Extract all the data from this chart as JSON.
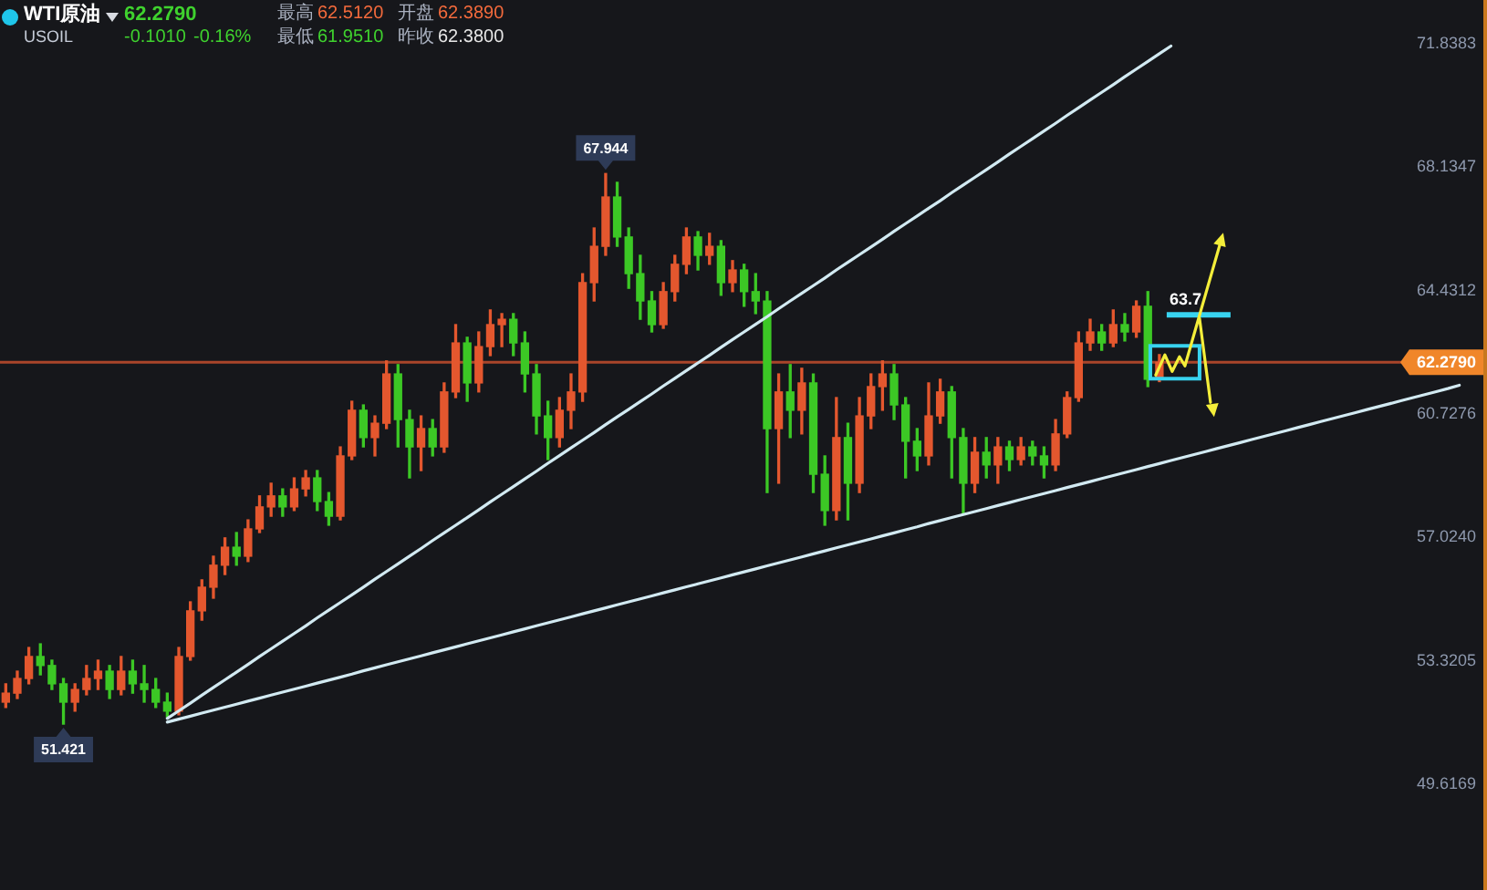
{
  "chart_data": {
    "type": "candlestick",
    "title": "WTI原油",
    "subtitle": "USOIL",
    "annotations": [
      "62.2790",
      "-0.1010",
      "-0.16%",
      "最高",
      "62.5120",
      "开盘",
      "62.3890",
      "最低",
      "61.9510",
      "昨收",
      "62.3800",
      {
        "text": "67.944",
        "y": 67.944
      },
      {
        "text": "51.421",
        "y": 51.421
      },
      "63.7"
    ],
    "categories": [
      null,
      null,
      null,
      null,
      null,
      null,
      null,
      null,
      null,
      null,
      null,
      null,
      null,
      null,
      null,
      null,
      null,
      null,
      null,
      null,
      null,
      null,
      null,
      null,
      null,
      null,
      null,
      null,
      null,
      null,
      null,
      null,
      null,
      null,
      null,
      null,
      null,
      null,
      null,
      null,
      null,
      null,
      null,
      null,
      null,
      null,
      null,
      null,
      null,
      null,
      null,
      null,
      null,
      null,
      null,
      null,
      null,
      null,
      null,
      null,
      null,
      null,
      null,
      null,
      null,
      null,
      null,
      null,
      null,
      null,
      null,
      null,
      null,
      null,
      null,
      null,
      null,
      null,
      null,
      null,
      null,
      null,
      null,
      null,
      null,
      null,
      null,
      null,
      null,
      null,
      null,
      null,
      null,
      null,
      null,
      null,
      null,
      null,
      null,
      null,
      null,
      null,
      null,
      null,
      null,
      null,
      null,
      null,
      null,
      null,
      null,
      null,
      null,
      null,
      null,
      null,
      null,
      null,
      null,
      null,
      null,
      null,
      null,
      null,
      null,
      null,
      null
    ],
    "series": [
      {
        "type": "candlestick",
        "ohlc": [
          [
            52.08,
            52.63,
            51.92,
            52.35
          ],
          [
            52.35,
            53.01,
            52.19,
            52.79
          ],
          [
            52.79,
            53.72,
            52.63,
            53.45
          ],
          [
            53.45,
            53.83,
            52.9,
            53.18
          ],
          [
            53.18,
            53.34,
            52.46,
            52.63
          ],
          [
            52.63,
            52.79,
            51.421,
            52.08
          ],
          [
            52.08,
            52.63,
            51.81,
            52.46
          ],
          [
            52.46,
            53.18,
            52.3,
            52.79
          ],
          [
            52.79,
            53.34,
            52.46,
            53.01
          ],
          [
            53.01,
            53.18,
            52.19,
            52.46
          ],
          [
            52.46,
            53.45,
            52.3,
            53.01
          ],
          [
            53.01,
            53.34,
            52.35,
            52.63
          ],
          [
            52.63,
            53.18,
            52.08,
            52.46
          ],
          [
            52.46,
            52.79,
            51.92,
            52.08
          ],
          [
            52.08,
            52.35,
            51.64,
            51.81
          ],
          [
            51.81,
            53.72,
            51.7,
            53.45
          ],
          [
            53.45,
            55.09,
            53.34,
            54.82
          ],
          [
            54.82,
            55.75,
            54.54,
            55.53
          ],
          [
            55.53,
            56.46,
            55.2,
            56.19
          ],
          [
            56.19,
            57.01,
            55.91,
            56.73
          ],
          [
            56.73,
            57.17,
            56.19,
            56.46
          ],
          [
            56.46,
            57.55,
            56.3,
            57.28
          ],
          [
            57.28,
            58.27,
            57.17,
            57.94
          ],
          [
            57.94,
            58.65,
            57.66,
            58.27
          ],
          [
            58.27,
            58.48,
            57.66,
            57.94
          ],
          [
            57.94,
            58.81,
            57.83,
            58.48
          ],
          [
            58.48,
            59.03,
            58.27,
            58.81
          ],
          [
            58.81,
            59.03,
            57.83,
            58.1
          ],
          [
            58.1,
            58.37,
            57.39,
            57.66
          ],
          [
            57.66,
            59.74,
            57.55,
            59.47
          ],
          [
            59.47,
            61.11,
            59.36,
            60.84
          ],
          [
            60.84,
            61.0,
            59.74,
            60.02
          ],
          [
            60.02,
            60.67,
            59.47,
            60.45
          ],
          [
            60.45,
            62.32,
            60.29,
            61.93
          ],
          [
            61.93,
            62.21,
            59.74,
            60.56
          ],
          [
            60.56,
            60.84,
            58.81,
            59.74
          ],
          [
            59.74,
            60.67,
            59.03,
            60.29
          ],
          [
            60.29,
            60.56,
            59.47,
            59.74
          ],
          [
            59.74,
            61.66,
            59.58,
            61.39
          ],
          [
            61.39,
            63.41,
            61.22,
            62.86
          ],
          [
            62.86,
            63.03,
            61.11,
            61.66
          ],
          [
            61.66,
            63.19,
            61.39,
            62.75
          ],
          [
            62.75,
            63.85,
            62.48,
            63.41
          ],
          [
            63.41,
            63.74,
            62.75,
            63.57
          ],
          [
            63.57,
            63.74,
            62.48,
            62.86
          ],
          [
            62.86,
            63.19,
            61.39,
            61.93
          ],
          [
            61.93,
            62.21,
            60.13,
            60.67
          ],
          [
            60.67,
            61.11,
            59.36,
            60.02
          ],
          [
            60.02,
            61.22,
            59.74,
            60.84
          ],
          [
            60.84,
            61.93,
            60.29,
            61.39
          ],
          [
            61.39,
            64.94,
            61.11,
            64.67
          ],
          [
            64.67,
            66.31,
            64.12,
            65.76
          ],
          [
            65.76,
            67.944,
            65.49,
            67.24
          ],
          [
            67.24,
            67.68,
            65.76,
            66.04
          ],
          [
            66.04,
            66.31,
            64.5,
            64.94
          ],
          [
            64.94,
            65.49,
            63.57,
            64.12
          ],
          [
            64.12,
            64.4,
            63.19,
            63.41
          ],
          [
            63.41,
            64.67,
            63.3,
            64.4
          ],
          [
            64.4,
            65.49,
            64.12,
            65.22
          ],
          [
            65.22,
            66.31,
            64.94,
            66.04
          ],
          [
            66.04,
            66.2,
            65.05,
            65.49
          ],
          [
            65.49,
            66.15,
            65.22,
            65.76
          ],
          [
            65.76,
            65.93,
            64.29,
            64.67
          ],
          [
            64.67,
            65.33,
            64.4,
            65.05
          ],
          [
            65.05,
            65.22,
            63.96,
            64.4
          ],
          [
            64.4,
            64.94,
            63.74,
            64.12
          ],
          [
            64.12,
            64.4,
            58.37,
            60.29
          ],
          [
            60.29,
            61.93,
            58.65,
            61.39
          ],
          [
            61.39,
            62.21,
            60.02,
            60.84
          ],
          [
            60.84,
            62.1,
            60.13,
            61.66
          ],
          [
            61.66,
            61.93,
            58.37,
            58.92
          ],
          [
            58.92,
            59.47,
            57.39,
            57.83
          ],
          [
            57.83,
            61.22,
            57.55,
            60.02
          ],
          [
            60.02,
            60.45,
            57.55,
            58.65
          ],
          [
            58.65,
            61.22,
            58.37,
            60.67
          ],
          [
            60.67,
            61.93,
            60.29,
            61.55
          ],
          [
            61.55,
            62.32,
            60.84,
            61.93
          ],
          [
            61.93,
            62.21,
            60.56,
            61.0
          ],
          [
            61.0,
            61.22,
            58.81,
            59.91
          ],
          [
            59.91,
            60.29,
            59.03,
            59.47
          ],
          [
            59.47,
            61.66,
            59.2,
            60.67
          ],
          [
            60.67,
            61.77,
            60.45,
            61.39
          ],
          [
            61.39,
            61.55,
            58.81,
            60.02
          ],
          [
            60.02,
            60.29,
            57.72,
            58.65
          ],
          [
            58.65,
            60.02,
            58.37,
            59.58
          ],
          [
            59.58,
            60.02,
            58.81,
            59.2
          ],
          [
            59.2,
            60.02,
            58.65,
            59.74
          ],
          [
            59.74,
            59.91,
            59.03,
            59.36
          ],
          [
            59.36,
            60.02,
            59.2,
            59.74
          ],
          [
            59.74,
            59.91,
            59.2,
            59.47
          ],
          [
            59.47,
            59.74,
            58.81,
            59.2
          ],
          [
            59.2,
            60.56,
            59.03,
            60.13
          ],
          [
            60.13,
            61.39,
            60.02,
            61.22
          ],
          [
            61.22,
            63.19,
            61.11,
            62.86
          ],
          [
            62.86,
            63.57,
            62.64,
            63.19
          ],
          [
            63.19,
            63.41,
            62.64,
            62.86
          ],
          [
            62.86,
            63.85,
            62.75,
            63.41
          ],
          [
            63.41,
            63.74,
            62.92,
            63.19
          ],
          [
            63.19,
            64.12,
            63.03,
            63.96
          ],
          [
            63.96,
            64.4,
            61.55,
            61.77
          ],
          [
            61.77,
            62.51,
            61.7,
            62.28
          ],
          null,
          null,
          null,
          null,
          null,
          null,
          null,
          null,
          null,
          null,
          null,
          null,
          null,
          null,
          null,
          null,
          null,
          null,
          null,
          null,
          null,
          null,
          null,
          null,
          null,
          null
        ],
        "colors": [
          "#e4572e",
          "#e4572e",
          "#e4572e",
          "#3cc825",
          "#3cc825",
          "#3cc825",
          "#e4572e",
          "#e4572e",
          "#e4572e",
          "#3cc825",
          "#e4572e",
          "#3cc825",
          "#3cc825",
          "#3cc825",
          "#3cc825",
          "#e4572e",
          "#e4572e",
          "#e4572e",
          "#e4572e",
          "#e4572e",
          "#3cc825",
          "#e4572e",
          "#e4572e",
          "#e4572e",
          "#3cc825",
          "#e4572e",
          "#e4572e",
          "#3cc825",
          "#3cc825",
          "#e4572e",
          "#e4572e",
          "#3cc825",
          "#e4572e",
          "#e4572e",
          "#3cc825",
          "#3cc825",
          "#e4572e",
          "#3cc825",
          "#e4572e",
          "#e4572e",
          "#3cc825",
          "#e4572e",
          "#e4572e",
          "#e4572e",
          "#3cc825",
          "#3cc825",
          "#3cc825",
          "#3cc825",
          "#e4572e",
          "#e4572e",
          "#e4572e",
          "#e4572e",
          "#e4572e",
          "#3cc825",
          "#3cc825",
          "#3cc825",
          "#3cc825",
          "#e4572e",
          "#e4572e",
          "#e4572e",
          "#3cc825",
          "#e4572e",
          "#3cc825",
          "#e4572e",
          "#3cc825",
          "#3cc825",
          "#3cc825",
          "#e4572e",
          "#3cc825",
          "#e4572e",
          "#3cc825",
          "#3cc825",
          "#e4572e",
          "#3cc825",
          "#e4572e",
          "#e4572e",
          "#e4572e",
          "#3cc825",
          "#3cc825",
          "#3cc825",
          "#e4572e",
          "#e4572e",
          "#3cc825",
          "#3cc825",
          "#e4572e",
          "#3cc825",
          "#e4572e",
          "#3cc825",
          "#e4572e",
          "#3cc825",
          "#3cc825",
          "#e4572e",
          "#e4572e",
          "#e4572e",
          "#e4572e",
          "#3cc825",
          "#e4572e",
          "#3cc825",
          "#e4572e",
          "#3cc825",
          "#e4572e",
          null,
          null,
          null,
          null,
          null,
          null,
          null,
          null,
          null,
          null,
          null,
          null,
          null,
          null,
          null,
          null,
          null,
          null,
          null,
          null,
          null,
          null,
          null,
          null,
          null,
          null
        ]
      },
      {
        "type": "line",
        "color": "#d2eaf2",
        "values": [
          null,
          null,
          null,
          null,
          null,
          null,
          null,
          null,
          null,
          null,
          null,
          null,
          null,
          null,
          51.59,
          51.82,
          52.05,
          52.29,
          52.52,
          52.75,
          52.98,
          53.21,
          53.45,
          53.68,
          53.91,
          54.14,
          54.37,
          54.61,
          54.84,
          55.07,
          55.3,
          55.53,
          55.77,
          56.0,
          56.23,
          56.46,
          56.69,
          56.93,
          57.16,
          57.39,
          57.62,
          57.85,
          58.09,
          58.32,
          58.55,
          58.78,
          59.01,
          59.25,
          59.48,
          59.71,
          59.94,
          60.17,
          60.41,
          60.64,
          60.87,
          61.1,
          61.33,
          61.57,
          61.8,
          62.03,
          62.26,
          62.49,
          62.73,
          62.96,
          63.19,
          63.42,
          63.65,
          63.89,
          64.12,
          64.35,
          64.58,
          64.81,
          65.05,
          65.28,
          65.51,
          65.74,
          65.97,
          66.21,
          66.44,
          66.67,
          66.9,
          67.13,
          67.37,
          67.6,
          67.83,
          68.06,
          68.29,
          68.53,
          68.76,
          68.99,
          69.22,
          69.45,
          69.69,
          69.92,
          70.15,
          70.38,
          70.61,
          70.85,
          71.08,
          71.31,
          71.54,
          71.77,
          null,
          null,
          null,
          null,
          null,
          null,
          null,
          null,
          null,
          null,
          null,
          null,
          null,
          null,
          null,
          null,
          null,
          null,
          null,
          null,
          null,
          null,
          null,
          null,
          null
        ]
      },
      {
        "type": "line",
        "color": "#d2eaf2",
        "values": [
          null,
          null,
          null,
          null,
          null,
          null,
          null,
          null,
          null,
          null,
          null,
          null,
          null,
          null,
          51.48,
          51.57,
          51.66,
          51.75,
          51.84,
          51.93,
          52.02,
          52.11,
          52.2,
          52.29,
          52.38,
          52.47,
          52.56,
          52.65,
          52.74,
          52.83,
          52.92,
          53.02,
          53.11,
          53.2,
          53.29,
          53.38,
          53.47,
          53.56,
          53.65,
          53.74,
          53.83,
          53.92,
          54.01,
          54.1,
          54.19,
          54.28,
          54.37,
          54.46,
          54.55,
          54.64,
          54.73,
          54.82,
          54.91,
          55.0,
          55.09,
          55.18,
          55.27,
          55.36,
          55.45,
          55.54,
          55.63,
          55.72,
          55.81,
          55.9,
          55.99,
          56.08,
          56.17,
          56.26,
          56.35,
          56.44,
          56.53,
          56.62,
          56.71,
          56.8,
          56.89,
          56.98,
          57.07,
          57.16,
          57.25,
          57.34,
          57.44,
          57.53,
          57.62,
          57.71,
          57.8,
          57.89,
          57.98,
          58.07,
          58.16,
          58.25,
          58.34,
          58.43,
          58.52,
          58.61,
          58.7,
          58.79,
          58.88,
          58.97,
          59.06,
          59.15,
          59.24,
          59.33,
          59.42,
          59.51,
          59.6,
          59.69,
          59.78,
          59.87,
          59.96,
          60.05,
          60.14,
          60.23,
          60.32,
          60.41,
          60.5,
          60.59,
          60.68,
          60.77,
          60.86,
          60.95,
          61.04,
          61.13,
          61.22,
          61.31,
          61.4,
          61.49,
          61.59
        ]
      }
    ],
    "ylim": [
      49.6169,
      71.8383
    ],
    "yticks": [
      71.8383,
      68.1347,
      64.4312,
      60.7276,
      {
        "value": 57.024,
        "label": "57.0240"
      },
      53.3205,
      49.6169
    ],
    "ref_lines": [
      {
        "axis": "y",
        "value": 62.279,
        "label": "62.2790",
        "color": "#a9452a"
      }
    ],
    "grid": false,
    "legend": false,
    "tick_labels": "y"
  }
}
